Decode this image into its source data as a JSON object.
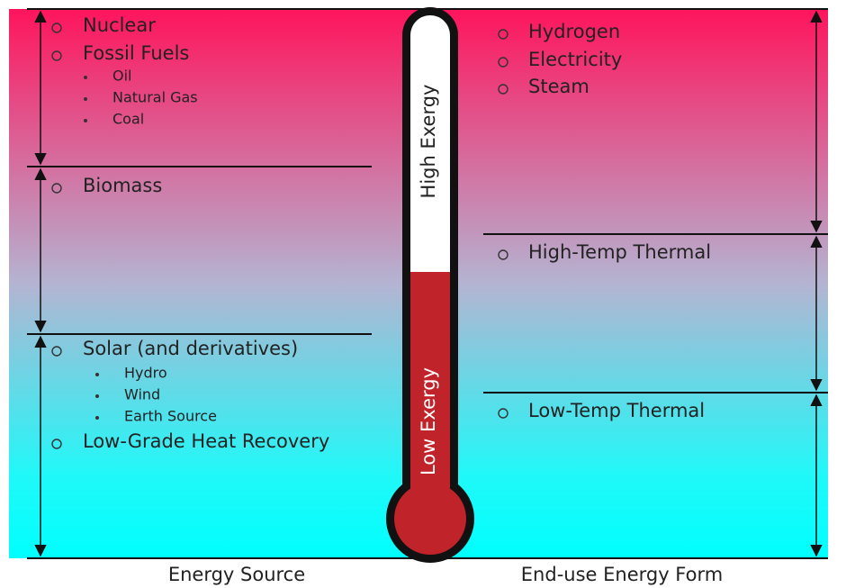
{
  "energy_source": {
    "caption": "Energy Source",
    "items": [
      {
        "label": "Nuclear"
      },
      {
        "label": "Fossil Fuels",
        "subitems": [
          "Oil",
          "Natural Gas",
          "Coal"
        ]
      },
      {
        "label": "Biomass"
      },
      {
        "label": "Solar (and derivatives)",
        "subitems": [
          "Hydro",
          "Wind",
          "Earth Source"
        ]
      },
      {
        "label": "Low-Grade Heat Recovery"
      }
    ]
  },
  "thermometer": {
    "high": "High Exergy",
    "low": "Low Exergy"
  },
  "end_use": {
    "caption": "End-use Energy Form",
    "items": [
      {
        "label": "Hydrogen"
      },
      {
        "label": "Electricity"
      },
      {
        "label": "Steam"
      },
      {
        "label": "High-Temp Thermal"
      },
      {
        "label": "Low-Temp Thermal"
      }
    ]
  }
}
